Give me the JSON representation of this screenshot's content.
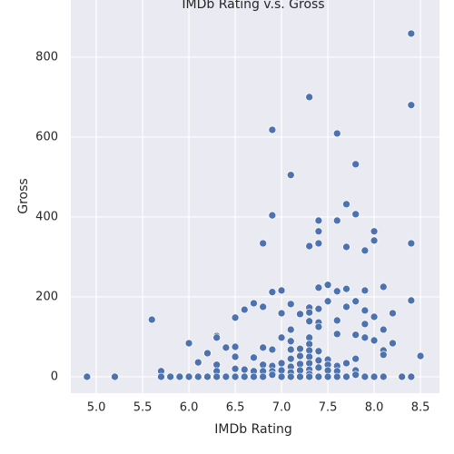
{
  "chart_data": {
    "type": "scatter",
    "title": "IMDb Rating v.s. Gross",
    "xlabel": "IMDb Rating",
    "ylabel": "Gross",
    "color": "#4c72b0",
    "grid": true,
    "background": "#eaeaf2",
    "xlim": [
      4.725,
      8.705
    ],
    "ylim": [
      -41,
      943
    ],
    "xticks": [
      {
        "value": 5.0,
        "label": "5.0"
      },
      5.5,
      {
        "value": 6.0,
        "label": "6.0"
      },
      6.5,
      {
        "value": 7.0,
        "label": "7.0"
      },
      7.5,
      {
        "value": 8.0,
        "label": "8.0"
      },
      8.5
    ],
    "yticks": [
      0,
      200,
      400,
      600,
      800
    ],
    "x": [
      4.9,
      5.2,
      5.6,
      5.7,
      5.7,
      5.8,
      5.9,
      6.0,
      6.0,
      6.1,
      6.1,
      6.2,
      6.2,
      6.3,
      6.3,
      6.3,
      6.3,
      6.3,
      6.4,
      6.4,
      6.5,
      6.5,
      6.5,
      6.5,
      6.5,
      6.6,
      6.6,
      6.6,
      6.7,
      6.7,
      6.7,
      6.7,
      6.8,
      6.8,
      6.8,
      6.8,
      6.8,
      6.8,
      6.9,
      6.9,
      6.9,
      6.9,
      6.9,
      6.9,
      6.9,
      7.0,
      7.0,
      7.0,
      7.0,
      7.0,
      7.0,
      7.1,
      7.1,
      7.1,
      7.1,
      7.1,
      7.1,
      7.1,
      7.1,
      7.1,
      7.2,
      7.2,
      7.2,
      7.2,
      7.2,
      7.2,
      7.3,
      7.3,
      7.3,
      7.3,
      7.3,
      7.3,
      7.3,
      7.3,
      7.3,
      7.3,
      7.3,
      7.3,
      7.3,
      7.4,
      7.4,
      7.4,
      7.4,
      7.4,
      7.4,
      7.4,
      7.4,
      7.4,
      7.4,
      7.4,
      7.5,
      7.5,
      7.5,
      7.5,
      7.5,
      7.5,
      7.6,
      7.6,
      7.6,
      7.6,
      7.6,
      7.6,
      7.6,
      7.6,
      7.7,
      7.7,
      7.7,
      7.7,
      7.7,
      7.7,
      7.8,
      7.8,
      7.8,
      7.8,
      7.8,
      7.8,
      7.8,
      7.9,
      7.9,
      7.9,
      7.9,
      7.9,
      7.9,
      8.0,
      8.0,
      8.0,
      8.0,
      8.0,
      8.1,
      8.1,
      8.1,
      8.1,
      8.1,
      8.2,
      8.2,
      8.3,
      8.4,
      8.4,
      8.4,
      8.4,
      8.4,
      8.5
    ],
    "values": [
      0,
      0,
      143,
      14,
      0,
      0,
      0,
      84,
      0,
      36,
      0,
      59,
      0,
      102,
      98,
      30,
      14,
      0,
      73,
      0,
      148,
      75,
      50,
      20,
      0,
      168,
      18,
      0,
      184,
      48,
      14,
      0,
      334,
      175,
      73,
      30,
      14,
      0,
      618,
      404,
      212,
      68,
      27,
      14,
      5,
      216,
      159,
      98,
      34,
      16,
      0,
      505,
      182,
      118,
      89,
      68,
      45,
      25,
      11,
      0,
      157,
      70,
      52,
      32,
      16,
      0,
      700,
      327,
      173,
      161,
      139,
      98,
      82,
      66,
      50,
      34,
      18,
      7,
      0,
      391,
      364,
      334,
      223,
      170,
      136,
      125,
      64,
      41,
      23,
      0,
      230,
      189,
      43,
      30,
      16,
      0,
      609,
      391,
      214,
      141,
      107,
      27,
      14,
      0,
      432,
      325,
      220,
      175,
      34,
      0,
      532,
      407,
      189,
      105,
      45,
      16,
      5,
      316,
      216,
      166,
      132,
      98,
      0,
      364,
      341,
      150,
      91,
      0,
      225,
      118,
      66,
      55,
      0,
      159,
      84,
      0,
      859,
      680,
      334,
      191,
      0,
      52
    ]
  }
}
